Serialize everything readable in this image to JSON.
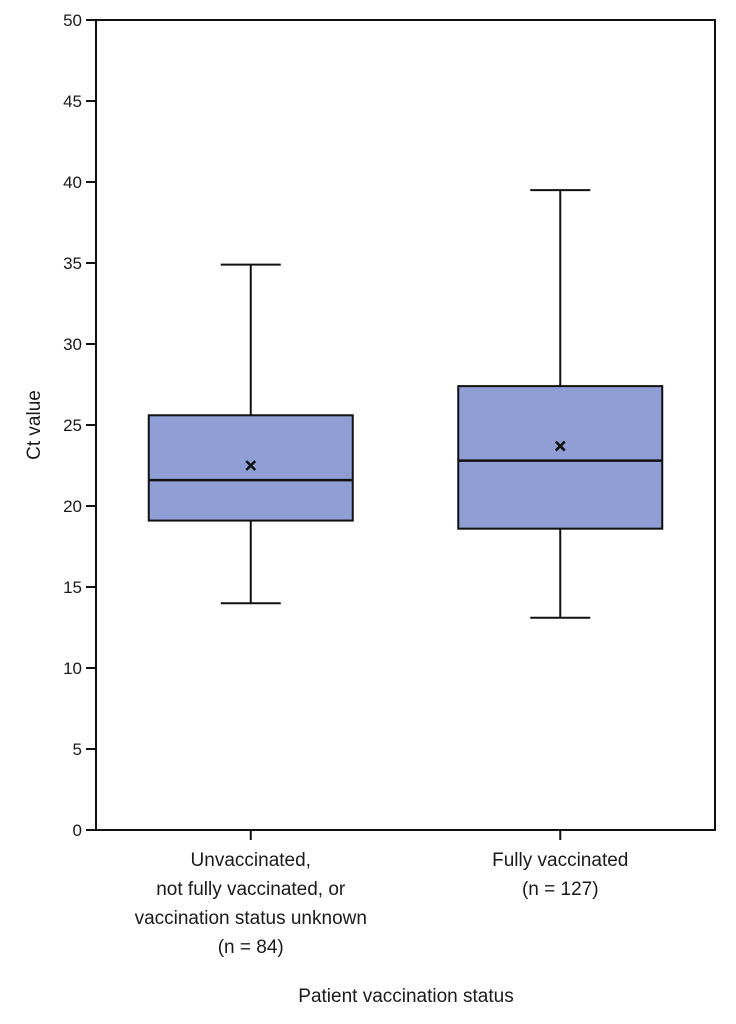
{
  "chart_data": {
    "type": "box",
    "title": "",
    "xlabel": "Patient vaccination status",
    "ylabel": "Ct  value",
    "ylim": [
      0,
      50
    ],
    "yticks": [
      0,
      5,
      10,
      15,
      20,
      25,
      30,
      35,
      40,
      45,
      50
    ],
    "grid": false,
    "legend": "none",
    "box_color": "#8f9fd6",
    "line_color": "#111111",
    "categories": [
      {
        "label_lines": [
          "Unvaccinated,",
          "not fully vaccinated, or",
          "vaccination status unknown",
          "(n = 84)"
        ],
        "whisker_low": 14.0,
        "q1": 19.1,
        "median": 21.6,
        "q3": 25.6,
        "whisker_high": 34.9,
        "mean": 22.5
      },
      {
        "label_lines": [
          "Fully vaccinated",
          "(n = 127)"
        ],
        "whisker_low": 13.1,
        "q1": 18.6,
        "median": 22.8,
        "q3": 27.4,
        "whisker_high": 39.5,
        "mean": 23.7
      }
    ]
  }
}
